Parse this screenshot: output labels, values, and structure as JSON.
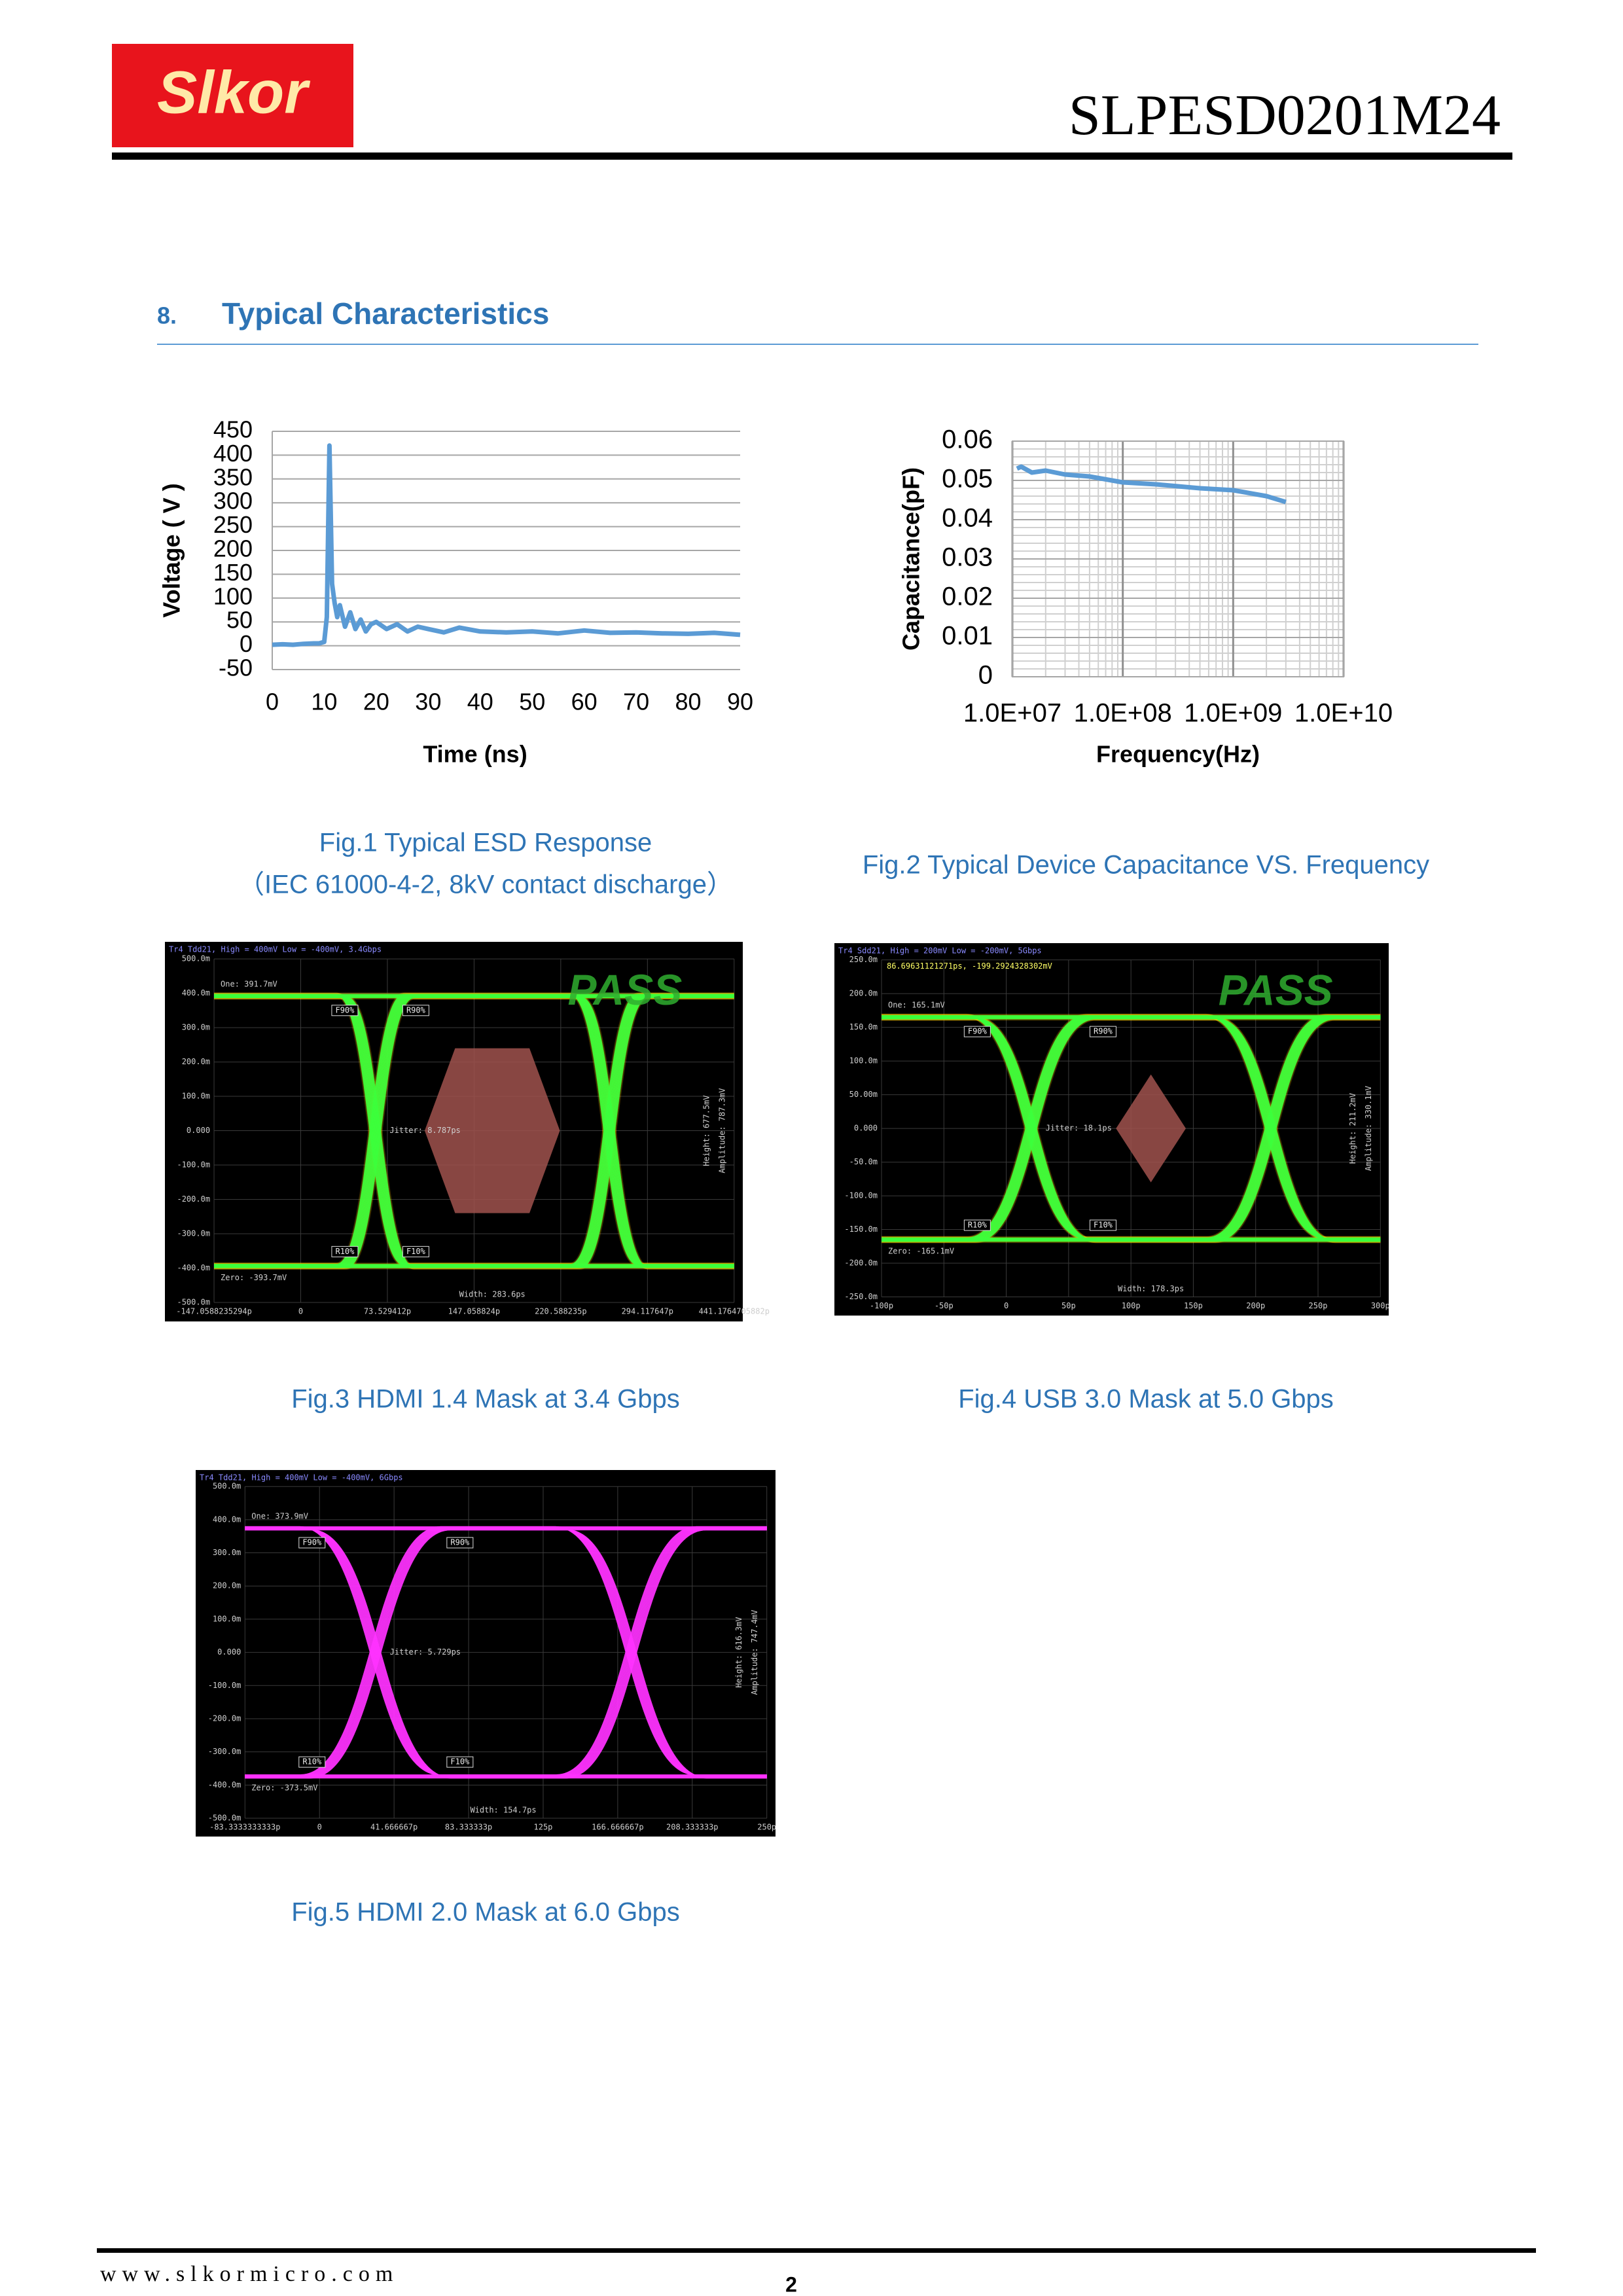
{
  "header": {
    "logo": "Slkor",
    "part_number": "SLPESD0201M24"
  },
  "section": {
    "number": "8.",
    "title": "Typical Characteristics"
  },
  "chart_data": [
    {
      "type": "line",
      "xlabel": "Time (ns)",
      "ylabel": "Voltage ( V )",
      "color": "#5b9bd5",
      "grid": true,
      "x": [
        0,
        2,
        4,
        6,
        8,
        9,
        10,
        10.5,
        11,
        11.5,
        12,
        12.5,
        13,
        14,
        15,
        16,
        17,
        18,
        19,
        20,
        22,
        24,
        26,
        28,
        30,
        33,
        36,
        40,
        45,
        50,
        55,
        60,
        65,
        70,
        75,
        80,
        85,
        90
      ],
      "values": [
        2,
        3,
        2,
        4,
        5,
        5,
        8,
        60,
        420,
        130,
        90,
        60,
        85,
        40,
        70,
        35,
        55,
        30,
        45,
        50,
        35,
        45,
        30,
        40,
        35,
        28,
        38,
        30,
        28,
        30,
        26,
        32,
        27,
        28,
        26,
        25,
        27,
        23
      ],
      "xlim": [
        0,
        90
      ],
      "xticks": [
        0,
        10,
        20,
        30,
        40,
        50,
        60,
        70,
        80,
        90
      ],
      "ylim": [
        -50,
        450
      ],
      "yticks": [
        -50,
        0,
        50,
        100,
        150,
        200,
        250,
        300,
        350,
        400,
        450
      ]
    },
    {
      "type": "line",
      "xlabel": "Frequency(Hz)",
      "ylabel": "Capacitance(pF)",
      "color": "#5b9bd5",
      "grid": true,
      "xscale": "log",
      "x": [
        11000000,
        12000000,
        15000000,
        20000000,
        30000000,
        50000000,
        100000000,
        200000000,
        500000000,
        1000000000,
        2000000000,
        3000000000
      ],
      "values": [
        0.053,
        0.0535,
        0.052,
        0.0525,
        0.0515,
        0.051,
        0.0495,
        0.049,
        0.048,
        0.0475,
        0.046,
        0.0445
      ],
      "xlim": [
        10000000,
        10000000000
      ],
      "xticks": [
        {
          "value": 10000000,
          "label": "1.0E+07"
        },
        {
          "value": 100000000,
          "label": "1.0E+08"
        },
        {
          "value": 1000000000,
          "label": "1.0E+09"
        },
        {
          "value": 10000000000,
          "label": "1.0E+10"
        }
      ],
      "ylim": [
        0,
        0.06
      ],
      "yticks": [
        0,
        0.01,
        0.02,
        0.03,
        0.04,
        0.05,
        0.06
      ]
    }
  ],
  "captions": [
    "Fig.1 Typical ESD Response",
    "（IEC 61000-4-2, 8kV contact discharge）",
    "Fig.2 Typical Device Capacitance VS. Frequency",
    "Fig.3 HDMI 1.4 Mask at 3.4 Gbps",
    "Fig.4 USB 3.0 Mask at 5.0 Gbps",
    "Fig.5 HDMI 2.0 Mask at 6.0 Gbps"
  ],
  "eye_diagrams": [
    {
      "header": "Tr4 Tdd21, High = 400mV Low = -400mV, 3.4Gbps",
      "color": "#3cff3c",
      "pass": "PASS",
      "one": "One: 391.7mV",
      "zero": "Zero: -393.7mV",
      "jitter": "Jitter: 8.787ps",
      "width": "Width: 283.6ps",
      "height": "Height: 677.5mV",
      "amplitude": "Amplitude: 787.3mV",
      "markers": [
        "F90%",
        "R90%",
        "R10%",
        "F10%"
      ],
      "y_labels": [
        "500.0m",
        "400.0m",
        "300.0m",
        "200.0m",
        "100.0m",
        "0.000",
        "-100.0m",
        "-200.0m",
        "-300.0m",
        "-400.0m",
        "-500.0m"
      ],
      "x_labels": [
        "-147.0588235294p",
        "0",
        "73.529412p",
        "147.058824p",
        "220.588235p",
        "294.117647p",
        "441.1764705882p"
      ]
    },
    {
      "header": "Tr4 Sdd21, High = 200mV Low = -200mV, 5Gbps",
      "color": "#3cff3c",
      "pass": "PASS",
      "readout": "86.69631121271ps, -199.2924328302mV",
      "one": "One: 165.1mV",
      "zero": "Zero: -165.1mV",
      "jitter": "Jitter: 18.1ps",
      "width": "Width: 178.3ps",
      "height": "Height: 211.2mV",
      "amplitude": "Amplitude: 330.1mV",
      "markers": [
        "F90%",
        "R90%",
        "R10%",
        "F10%"
      ],
      "y_labels": [
        "250.0m",
        "200.0m",
        "150.0m",
        "100.0m",
        "50.00m",
        "0.000",
        "-50.0m",
        "-100.0m",
        "-150.0m",
        "-200.0m",
        "-250.0m"
      ],
      "x_labels": [
        "-100p",
        "-50p",
        "0",
        "50p",
        "100p",
        "150p",
        "200p",
        "250p",
        "300p"
      ]
    },
    {
      "header": "Tr4 Tdd21, High = 400mV Low = -400mV, 6Gbps",
      "color": "#ff33ff",
      "one": "One: 373.9mV",
      "zero": "Zero: -373.5mV",
      "jitter": "Jitter: 5.729ps",
      "width": "Width: 154.7ps",
      "height": "Height: 616.3mV",
      "amplitude": "Amplitude: 747.4mV",
      "markers": [
        "F90%",
        "R90%",
        "R10%",
        "F10%"
      ],
      "y_labels": [
        "500.0m",
        "400.0m",
        "300.0m",
        "200.0m",
        "100.0m",
        "0.000",
        "-100.0m",
        "-200.0m",
        "-300.0m",
        "-400.0m",
        "-500.0m"
      ],
      "x_labels": [
        "-83.3333333333p",
        "0",
        "41.666667p",
        "83.333333p",
        "125p",
        "166.666667p",
        "208.333333p",
        "250p"
      ]
    }
  ],
  "footer": {
    "website": "www.slkormicro.com",
    "page": "2"
  }
}
